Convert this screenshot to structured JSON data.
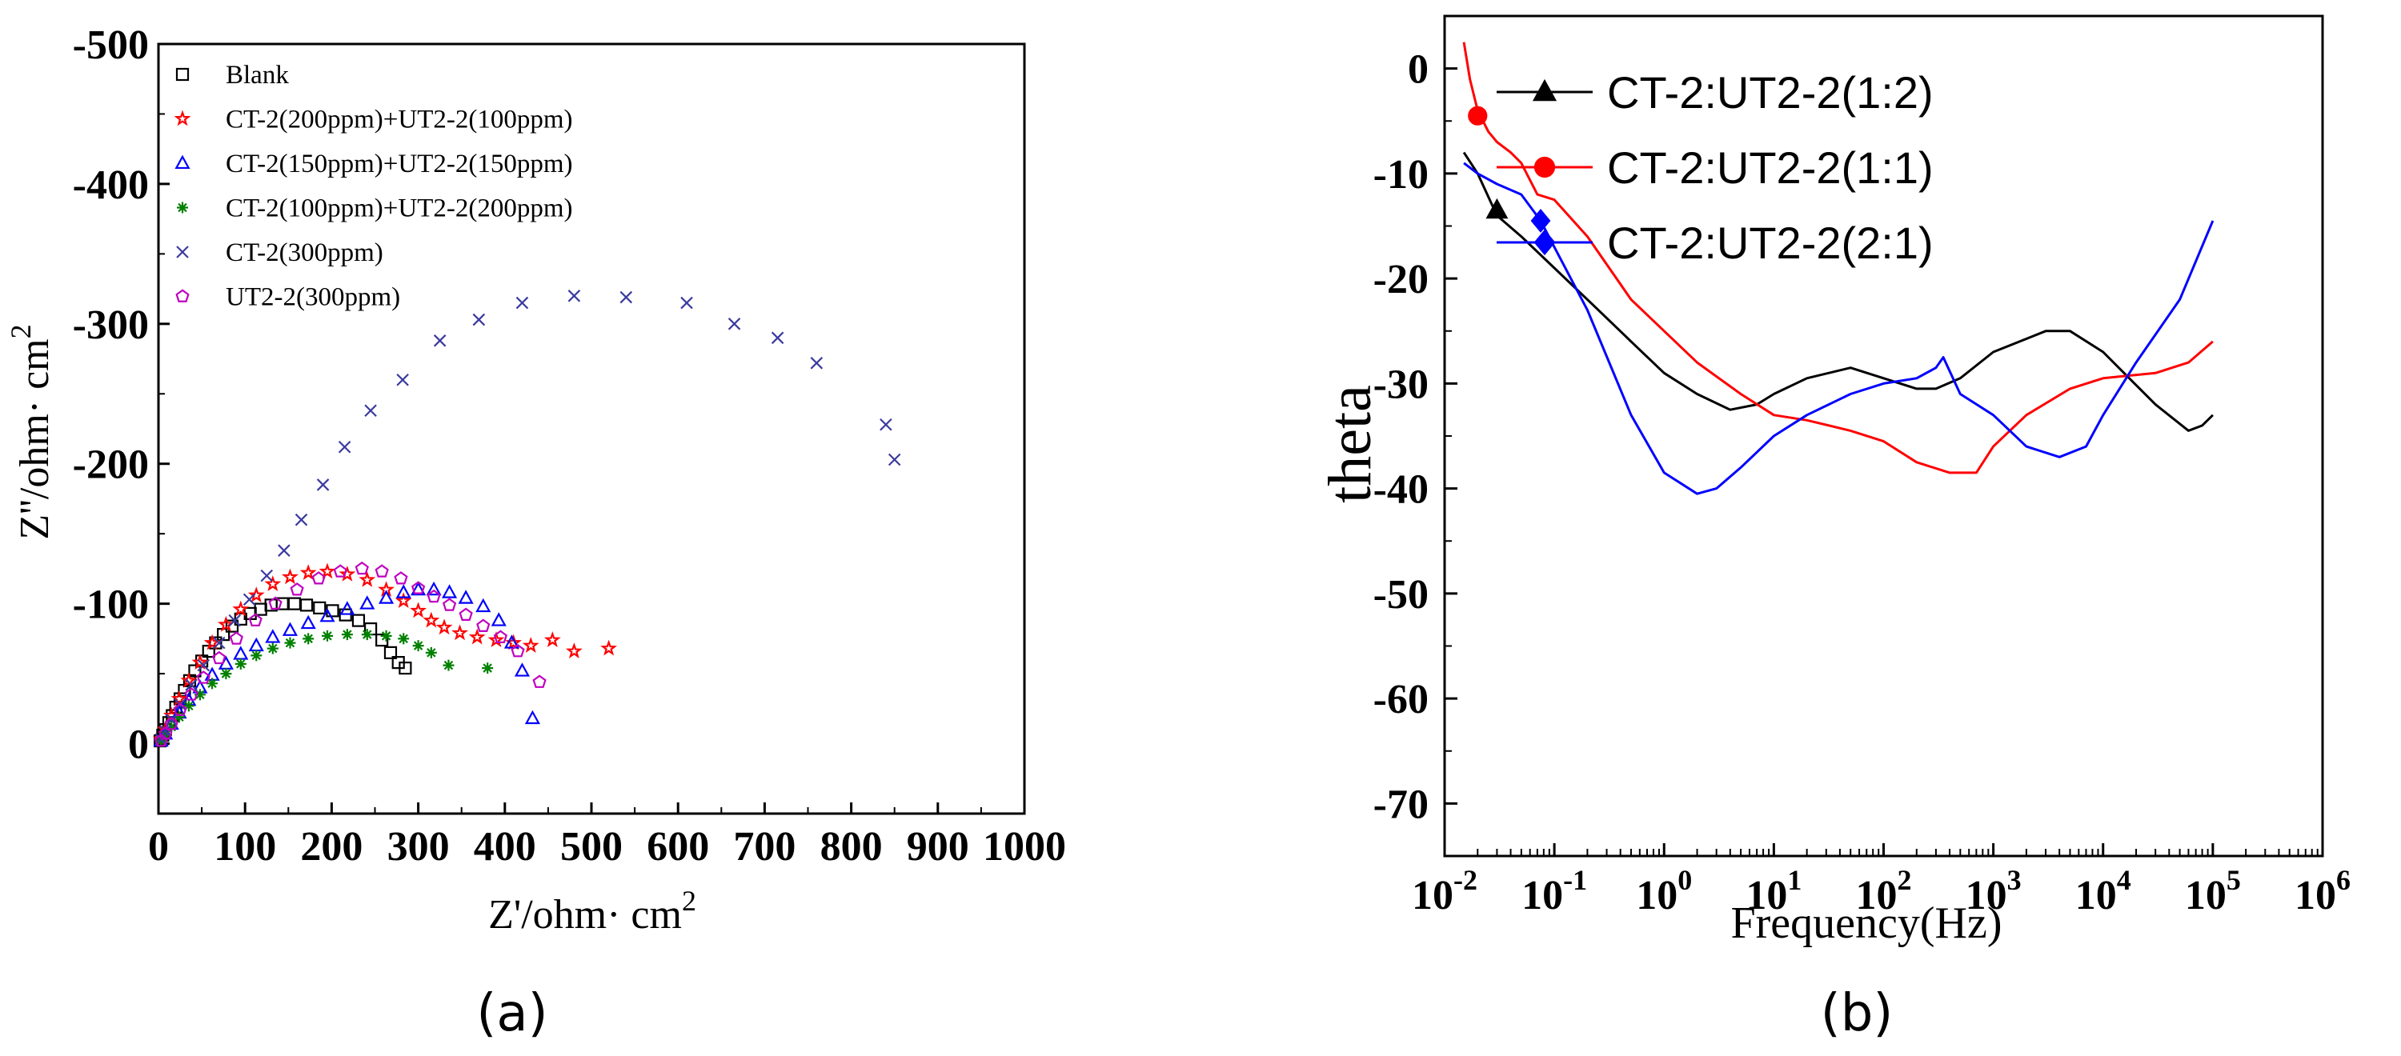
{
  "chart_data": [
    {
      "panel": "(a)",
      "type": "scatter",
      "xlabel": "Z'/ohm· cm",
      "xlabel_sup": "2",
      "ylabel": "Z''/ohm· cm",
      "ylabel_sup": "2",
      "xlim": [
        0,
        1000
      ],
      "ylim": [
        -500,
        50
      ],
      "xticks": [
        0,
        100,
        200,
        300,
        400,
        500,
        600,
        700,
        800,
        900,
        1000
      ],
      "yticks": [
        -500,
        -400,
        -300,
        -200,
        -100,
        0
      ],
      "legend_position": "top-left",
      "series": [
        {
          "name": "Blank",
          "marker": "square",
          "color": "#000000",
          "x": [
            2,
            5,
            8,
            12,
            16,
            20,
            25,
            30,
            36,
            42,
            50,
            58,
            66,
            75,
            85,
            95,
            106,
            118,
            130,
            143,
            157,
            171,
            186,
            201,
            216,
            231,
            245,
            258,
            268,
            277,
            285
          ],
          "y": [
            -2,
            -6,
            -10,
            -15,
            -20,
            -26,
            -32,
            -38,
            -45,
            -52,
            -59,
            -66,
            -72,
            -78,
            -84,
            -89,
            -93,
            -96,
            -99,
            -100,
            -100,
            -99,
            -97,
            -95,
            -92,
            -88,
            -82,
            -74,
            -65,
            -58,
            -54
          ]
        },
        {
          "name": "CT-2(200ppm)+UT2-2(100ppm)",
          "marker": "star",
          "color": "#ff0000",
          "x": [
            3,
            8,
            15,
            24,
            35,
            48,
            62,
            78,
            95,
            113,
            132,
            152,
            173,
            195,
            218,
            241,
            263,
            283,
            300,
            315,
            330,
            348,
            368,
            390,
            410,
            430,
            455,
            480,
            520
          ],
          "y": [
            -3,
            -10,
            -20,
            -32,
            -45,
            -58,
            -72,
            -85,
            -96,
            -106,
            -114,
            -119,
            -122,
            -123,
            -121,
            -117,
            -110,
            -102,
            -95,
            -88,
            -83,
            -79,
            -76,
            -74,
            -72,
            -70,
            -74,
            -66,
            -68
          ]
        },
        {
          "name": "CT-2(150ppm)+UT2-2(150ppm)",
          "marker": "triangle",
          "color": "#0000ff",
          "x": [
            3,
            8,
            15,
            24,
            35,
            48,
            62,
            78,
            95,
            113,
            132,
            152,
            173,
            195,
            218,
            241,
            263,
            283,
            300,
            318,
            336,
            355,
            375,
            393,
            408,
            420,
            432
          ],
          "y": [
            -2,
            -7,
            -14,
            -22,
            -31,
            -40,
            -49,
            -57,
            -64,
            -70,
            -76,
            -81,
            -86,
            -91,
            -96,
            -100,
            -104,
            -108,
            -110,
            -110,
            -108,
            -104,
            -98,
            -88,
            -72,
            -52,
            -18
          ]
        },
        {
          "name": "CT-2(100ppm)+UT2-2(200ppm)",
          "marker": "asterisk",
          "color": "#008000",
          "x": [
            3,
            8,
            15,
            24,
            35,
            48,
            62,
            78,
            95,
            113,
            132,
            152,
            173,
            195,
            218,
            241,
            263,
            283,
            300,
            315,
            335,
            380
          ],
          "y": [
            -2,
            -6,
            -12,
            -19,
            -27,
            -35,
            -43,
            -50,
            -57,
            -63,
            -68,
            -72,
            -75,
            -77,
            -78,
            -78,
            -77,
            -75,
            -70,
            -65,
            -56,
            -54
          ]
        },
        {
          "name": "CT-2(300ppm)",
          "marker": "x",
          "color": "#3a3aa0",
          "x": [
            3,
            8,
            15,
            25,
            38,
            52,
            70,
            88,
            105,
            125,
            145,
            165,
            190,
            215,
            245,
            282,
            325,
            370,
            420,
            480,
            540,
            610,
            665,
            715,
            760,
            840,
            850
          ],
          "y": [
            -3,
            -9,
            -17,
            -28,
            -42,
            -56,
            -72,
            -88,
            -103,
            -120,
            -138,
            -160,
            -185,
            -212,
            -238,
            -260,
            -288,
            -303,
            -315,
            -320,
            -319,
            -315,
            -300,
            -290,
            -272,
            -228,
            -203
          ]
        },
        {
          "name": "UT2-2(300ppm)",
          "marker": "pentagon",
          "color": "#c000c0",
          "x": [
            3,
            8,
            15,
            25,
            38,
            52,
            70,
            90,
            112,
            135,
            160,
            185,
            210,
            235,
            258,
            280,
            300,
            318,
            336,
            355,
            375,
            395,
            415,
            440
          ],
          "y": [
            -2,
            -7,
            -14,
            -24,
            -35,
            -47,
            -61,
            -75,
            -88,
            -100,
            -110,
            -118,
            -123,
            -125,
            -123,
            -118,
            -111,
            -105,
            -99,
            -92,
            -84,
            -76,
            -66,
            -44
          ]
        }
      ]
    },
    {
      "panel": "(b)",
      "type": "line",
      "xscale": "log",
      "xlabel": "Frequency(Hz)",
      "ylabel": "theta",
      "xlim": [
        0.01,
        1000000
      ],
      "ylim": [
        5,
        -75
      ],
      "xtick_exponents": [
        "-2",
        "-1",
        "0",
        "1",
        "2",
        "3",
        "4",
        "5",
        "6"
      ],
      "xtick_base": "10",
      "yticks": [
        0,
        -10,
        -20,
        -30,
        -40,
        -50,
        -60,
        -70
      ],
      "legend_position": "top-left",
      "series": [
        {
          "name": "CT-2:UT2-2(1:2)",
          "marker": "triangle",
          "color": "#000000",
          "marker_point": [
            0.03,
            -13.5
          ],
          "x": [
            0.015,
            0.02,
            0.03,
            0.05,
            0.1,
            0.2,
            0.5,
            1,
            2,
            4,
            7,
            10,
            20,
            50,
            100,
            200,
            300,
            500,
            1000,
            3000,
            5000,
            10000,
            30000,
            60000,
            80000,
            100000
          ],
          "y": [
            -8,
            -10,
            -14,
            -16,
            -19,
            -22,
            -26,
            -29,
            -31,
            -32.5,
            -32,
            -31,
            -29.5,
            -28.5,
            -29.5,
            -30.5,
            -30.5,
            -29.5,
            -27,
            -25,
            -25,
            -27,
            -32,
            -34.5,
            -34,
            -33
          ]
        },
        {
          "name": "CT-2:UT2-2(1:1)",
          "marker": "circle",
          "color": "#ff0000",
          "marker_point": [
            0.02,
            -4.5
          ],
          "x": [
            0.015,
            0.017,
            0.02,
            0.025,
            0.03,
            0.04,
            0.05,
            0.07,
            0.1,
            0.2,
            0.5,
            1,
            2,
            5,
            10,
            20,
            50,
            100,
            200,
            400,
            700,
            1000,
            2000,
            5000,
            10000,
            30000,
            60000,
            100000
          ],
          "y": [
            2.5,
            -1,
            -4,
            -6,
            -7,
            -8,
            -9,
            -12,
            -12.5,
            -16,
            -22,
            -25,
            -28,
            -31,
            -33,
            -33.5,
            -34.5,
            -35.5,
            -37.5,
            -38.5,
            -38.5,
            -36,
            -33,
            -30.5,
            -29.5,
            -29,
            -28,
            -26
          ]
        },
        {
          "name": "CT-2:UT2-2(2:1)",
          "marker": "diamond",
          "color": "#0000ff",
          "marker_point": [
            0.075,
            -14.5
          ],
          "x": [
            0.015,
            0.02,
            0.03,
            0.05,
            0.075,
            0.1,
            0.2,
            0.5,
            1,
            2,
            3,
            5,
            10,
            20,
            50,
            100,
            200,
            300,
            350,
            500,
            1000,
            2000,
            4000,
            7000,
            10000,
            20000,
            50000,
            100000
          ],
          "y": [
            -9,
            -10,
            -11,
            -12,
            -14.5,
            -17,
            -23,
            -33,
            -38.5,
            -40.5,
            -40,
            -38,
            -35,
            -33,
            -31,
            -30,
            -29.5,
            -28.5,
            -27.5,
            -31,
            -33,
            -36,
            -37,
            -36,
            -33,
            -28,
            -22,
            -14.5
          ]
        }
      ]
    }
  ]
}
